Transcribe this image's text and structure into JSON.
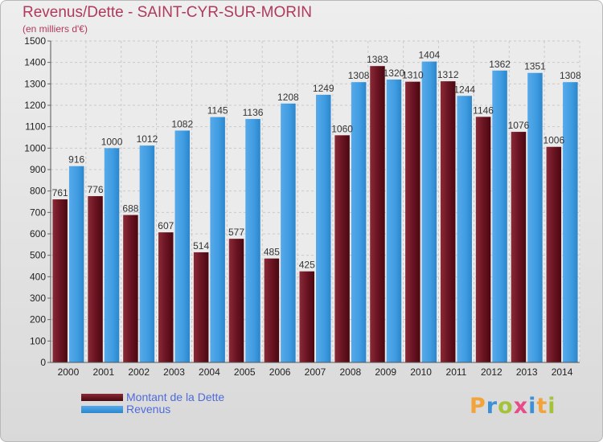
{
  "title": "Revenus/Dette - SAINT-CYR-SUR-MORIN",
  "subtitle": "(en milliers d'€)",
  "legend": {
    "dette_label": "Montant de la Dette",
    "revenus_label": "Revenus"
  },
  "logo": {
    "text": "Proxiti",
    "letter_colors": [
      "#f2a33a",
      "#3d8fd6",
      "#a4c23a",
      "#e84b8a",
      "#3d8fd6",
      "#f2a33a",
      "#a4c23a"
    ]
  },
  "colors": {
    "dette": "#6e1020",
    "revenus": "#3f9be0",
    "text": "#b03a5b",
    "legend_text": "#4e6bd8"
  },
  "chart_data": {
    "type": "bar",
    "categories": [
      "2000",
      "2001",
      "2002",
      "2003",
      "2004",
      "2005",
      "2006",
      "2007",
      "2008",
      "2009",
      "2010",
      "2011",
      "2012",
      "2013",
      "2014"
    ],
    "series": [
      {
        "name": "Montant de la Dette",
        "values": [
          761,
          776,
          688,
          607,
          514,
          577,
          485,
          425,
          1060,
          1383,
          1310,
          1312,
          1146,
          1076,
          1006
        ]
      },
      {
        "name": "Revenus",
        "values": [
          916,
          1000,
          1012,
          1082,
          1145,
          1136,
          1208,
          1249,
          1308,
          1320,
          1404,
          1244,
          1362,
          1351,
          1308
        ]
      }
    ],
    "data_labels": [
      [
        "761",
        "776",
        "688",
        "607",
        "514",
        "577",
        "485",
        "425",
        "1060",
        "1383",
        "1310",
        "1312",
        "1146",
        "1076",
        "1006"
      ],
      [
        "916",
        "1000",
        "1012",
        "1082",
        "1145",
        "1136",
        "1208",
        "1249",
        "1308",
        "1320",
        "1404",
        "1244",
        "1362",
        "1351",
        "1308"
      ]
    ],
    "yticks": [
      0,
      100,
      200,
      300,
      400,
      500,
      600,
      700,
      800,
      900,
      1000,
      1100,
      1200,
      1300,
      1400,
      1500
    ],
    "ylim": [
      0,
      1500
    ],
    "grid": true,
    "legend_position": "bottom-left"
  }
}
